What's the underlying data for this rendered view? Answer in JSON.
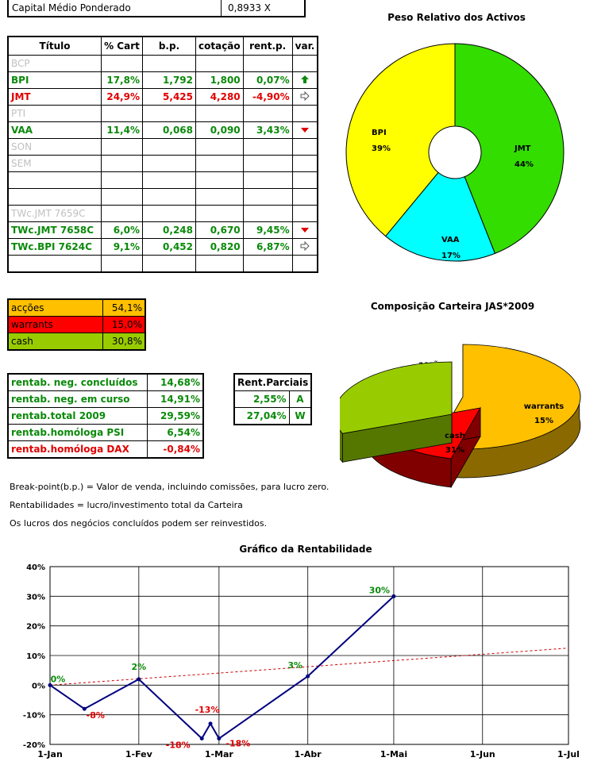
{
  "capital": {
    "label": "Capital Médio Ponderado",
    "value": "0,8933 X"
  },
  "positions": {
    "headers": [
      "Título",
      "% Cart",
      "b.p.",
      "cotação",
      "rent.p.",
      "var."
    ],
    "rows": [
      {
        "name": "BCP",
        "cart": "",
        "bp": "",
        "cot": "",
        "rent": "",
        "var": "",
        "style": "grey"
      },
      {
        "name": "BPI",
        "cart": "17,8%",
        "bp": "1,792",
        "cot": "1,800",
        "rent": "0,07%",
        "var": "up",
        "style": "green"
      },
      {
        "name": "JMT",
        "cart": "24,9%",
        "bp": "5,425",
        "cot": "4,280",
        "rent": "-4,90%",
        "var": "right",
        "style": "red"
      },
      {
        "name": "PTI",
        "cart": "",
        "bp": "",
        "cot": "",
        "rent": "",
        "var": "",
        "style": "grey"
      },
      {
        "name": "VAA",
        "cart": "11,4%",
        "bp": "0,068",
        "cot": "0,090",
        "rent": "3,43%",
        "var": "down",
        "style": "green"
      },
      {
        "name": "SON",
        "cart": "",
        "bp": "",
        "cot": "",
        "rent": "",
        "var": "",
        "style": "grey"
      },
      {
        "name": "SEM",
        "cart": "",
        "bp": "",
        "cot": "",
        "rent": "",
        "var": "",
        "style": "grey"
      },
      {
        "name": "",
        "cart": "",
        "bp": "",
        "cot": "",
        "rent": "",
        "var": "",
        "style": "grey"
      },
      {
        "name": "",
        "cart": "",
        "bp": "",
        "cot": "",
        "rent": "",
        "var": "",
        "style": "grey"
      },
      {
        "name": "TWc.JMT 7659C",
        "cart": "",
        "bp": "",
        "cot": "",
        "rent": "",
        "var": "",
        "style": "grey"
      },
      {
        "name": "TWc.JMT 7658C",
        "cart": "6,0%",
        "bp": "0,248",
        "cot": "0,670",
        "rent": "9,45%",
        "var": "down",
        "style": "green"
      },
      {
        "name": "TWc.BPI 7624C",
        "cart": "9,1%",
        "bp": "0,452",
        "cot": "0,820",
        "rent": "6,87%",
        "var": "right",
        "style": "green"
      },
      {
        "name": "",
        "cart": "",
        "bp": "",
        "cot": "",
        "rent": "",
        "var": "",
        "style": "grey"
      }
    ]
  },
  "allocation": [
    {
      "name": "acções",
      "value": "54,1%",
      "color": "#ffc000"
    },
    {
      "name": "warrants",
      "value": "15,0%",
      "color": "#ff0000"
    },
    {
      "name": "cash",
      "value": "30,8%",
      "color": "#99cc00"
    }
  ],
  "returns": [
    {
      "name": "rentab. neg. concluídos",
      "value": "14,68%",
      "style": "green"
    },
    {
      "name": "rentab. neg. em curso",
      "value": "14,91%",
      "style": "green"
    },
    {
      "name": "rentab.total 2009",
      "value": "29,59%",
      "style": "green"
    },
    {
      "name": "rentab.homóloga PSI",
      "value": "6,54%",
      "style": "green"
    },
    {
      "name": "rentab.homóloga DAX",
      "value": "-0,84%",
      "style": "red"
    }
  ],
  "partials": {
    "header": "Rent.Parciais",
    "rows": [
      {
        "value": "2,55%",
        "label": "A"
      },
      {
        "value": "27,04%",
        "label": "W"
      }
    ]
  },
  "notes": [
    "Break-point(b.p.) = Valor de venda, incluindo comissões, para lucro zero.",
    "Rentabilidades = lucro/investimento total da Carteira",
    "Os lucros dos negócios concluídos podem ser reinvestidos."
  ],
  "icons": {
    "up": "arrow-up-icon",
    "down": "arrow-down-icon",
    "right": "arrow-right-icon"
  },
  "chart_data": [
    {
      "type": "pie",
      "title": "Peso Relativo dos Activos",
      "donut": true,
      "slices": [
        {
          "name": "JMT",
          "value": 44,
          "label": "44%",
          "color": "#33dd00"
        },
        {
          "name": "VAA",
          "value": 17,
          "label": "17%",
          "color": "#00ffff"
        },
        {
          "name": "BPI",
          "value": 39,
          "label": "39%",
          "color": "#ffff00"
        }
      ]
    },
    {
      "type": "pie",
      "title": "Composição Carteira JAS*2009",
      "three_d": true,
      "slices": [
        {
          "name": "acções",
          "value": 54,
          "label": "54%",
          "color": "#ffc000"
        },
        {
          "name": "warrants",
          "value": 15,
          "label": "15%",
          "color": "#ff0000"
        },
        {
          "name": "cash",
          "value": 31,
          "label": "31%",
          "color": "#99cc00"
        }
      ]
    },
    {
      "type": "line",
      "title": "Gráfico da Rentabilidade",
      "x_ticks": [
        "1-Jan",
        "1-Fev",
        "1-Mar",
        "1-Abr",
        "1-Mai",
        "1-Jun",
        "1-Jul"
      ],
      "y_ticks": [
        "-20%",
        "-10%",
        "0%",
        "10%",
        "20%",
        "30%",
        "40%"
      ],
      "ylim": [
        -20,
        40
      ],
      "grid": true,
      "series": [
        {
          "color": "#000080",
          "points": [
            {
              "x": "2009-01-01",
              "y": 0,
              "label": "0%"
            },
            {
              "x": "2009-01-13",
              "y": -8,
              "label": "-8%"
            },
            {
              "x": "2009-02-01",
              "y": 2,
              "label": "2%"
            },
            {
              "x": "2009-02-23",
              "y": -18,
              "label": "-18%"
            },
            {
              "x": "2009-02-26",
              "y": -13,
              "label": "-13%"
            },
            {
              "x": "2009-03-01",
              "y": -18,
              "label": "-18%"
            },
            {
              "x": "2009-04-01",
              "y": 3,
              "label": "3%"
            },
            {
              "x": "2009-05-01",
              "y": 30,
              "label": "30%"
            }
          ]
        }
      ],
      "trendline": {
        "color": "#cc0000",
        "y_start": 0,
        "y_end": 12.5
      }
    }
  ]
}
